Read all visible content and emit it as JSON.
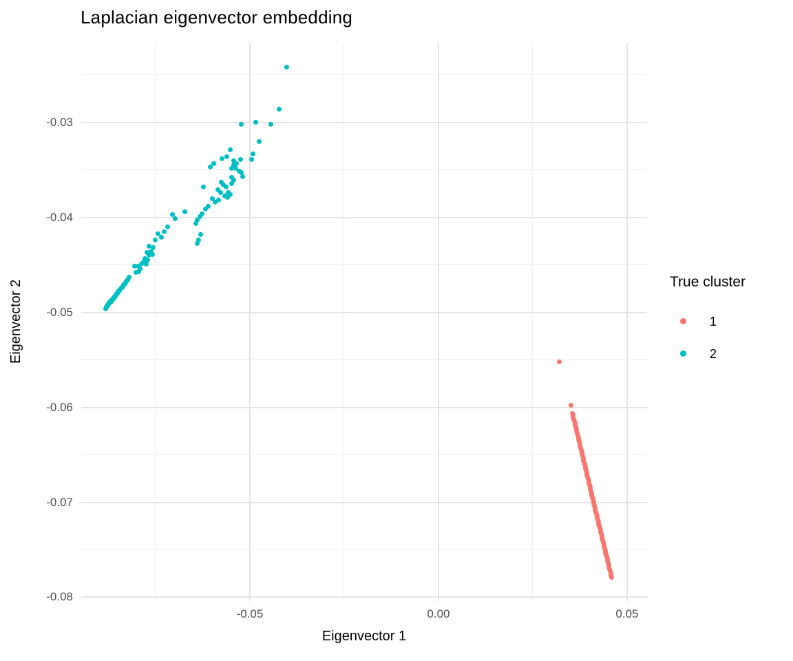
{
  "chart_data": {
    "type": "scatter",
    "title": "Laplacian eigenvector embedding",
    "xlabel": "Eigenvector 1",
    "ylabel": "Eigenvector 2",
    "xlim": [
      -0.0947,
      0.0553
    ],
    "ylim": [
      -0.0804,
      -0.0216
    ],
    "grid": true,
    "x_major_ticks": [
      -0.05,
      0.0,
      0.05
    ],
    "x_tick_labels": [
      "-0.05",
      "0.00",
      "0.05"
    ],
    "x_minor_ticks": [
      -0.075,
      -0.025,
      0.025
    ],
    "y_major_ticks": [
      -0.03,
      -0.04,
      -0.05,
      -0.06,
      -0.07,
      -0.08
    ],
    "y_tick_labels": [
      "-0.03",
      "-0.04",
      "-0.05",
      "-0.06",
      "-0.07",
      "-0.08"
    ],
    "y_minor_ticks": [
      -0.025,
      -0.035,
      -0.045,
      -0.055,
      -0.065,
      -0.075
    ],
    "legend": {
      "title": "True cluster",
      "position": "right",
      "entries": [
        {
          "label": "1",
          "color": "#F8766D"
        },
        {
          "label": "2",
          "color": "#00BFC4"
        }
      ]
    },
    "series": [
      {
        "name": "1",
        "color": "#F8766D",
        "points": [
          [
            0.0321,
            -0.0552
          ],
          [
            0.0351,
            -0.0598
          ],
          [
            0.0355,
            -0.06061
          ],
          [
            0.03563,
            -0.06082
          ],
          [
            0.03576,
            -0.06104
          ],
          [
            0.03589,
            -0.06126
          ],
          [
            0.03602,
            -0.06147
          ],
          [
            0.03615,
            -0.06169
          ],
          [
            0.03628,
            -0.0619
          ],
          [
            0.03641,
            -0.06212
          ],
          [
            0.03654,
            -0.06234
          ],
          [
            0.03667,
            -0.06255
          ],
          [
            0.0368,
            -0.06277
          ],
          [
            0.03693,
            -0.06298
          ],
          [
            0.03706,
            -0.0632
          ],
          [
            0.03719,
            -0.06342
          ],
          [
            0.03732,
            -0.06363
          ],
          [
            0.03745,
            -0.06385
          ],
          [
            0.03758,
            -0.06406
          ],
          [
            0.03771,
            -0.06428
          ],
          [
            0.03784,
            -0.0645
          ],
          [
            0.03797,
            -0.06471
          ],
          [
            0.0381,
            -0.06493
          ],
          [
            0.03823,
            -0.06515
          ],
          [
            0.03836,
            -0.06536
          ],
          [
            0.03849,
            -0.06558
          ],
          [
            0.03862,
            -0.06579
          ],
          [
            0.03875,
            -0.06601
          ],
          [
            0.03888,
            -0.06623
          ],
          [
            0.03901,
            -0.06644
          ],
          [
            0.03914,
            -0.06666
          ],
          [
            0.03927,
            -0.06687
          ],
          [
            0.0394,
            -0.06709
          ],
          [
            0.03953,
            -0.06731
          ],
          [
            0.03966,
            -0.06752
          ],
          [
            0.03979,
            -0.06774
          ],
          [
            0.03992,
            -0.06795
          ],
          [
            0.04005,
            -0.06817
          ],
          [
            0.04018,
            -0.06839
          ],
          [
            0.04031,
            -0.0686
          ],
          [
            0.04044,
            -0.06882
          ],
          [
            0.04057,
            -0.06904
          ],
          [
            0.0407,
            -0.06925
          ],
          [
            0.04083,
            -0.06947
          ],
          [
            0.04096,
            -0.06968
          ],
          [
            0.04109,
            -0.0699
          ],
          [
            0.04122,
            -0.07012
          ],
          [
            0.04135,
            -0.07033
          ],
          [
            0.04148,
            -0.07055
          ],
          [
            0.04161,
            -0.07076
          ],
          [
            0.04174,
            -0.07098
          ],
          [
            0.04187,
            -0.0712
          ],
          [
            0.042,
            -0.07141
          ],
          [
            0.04213,
            -0.07163
          ],
          [
            0.04226,
            -0.07184
          ],
          [
            0.04239,
            -0.07206
          ],
          [
            0.04252,
            -0.07228
          ],
          [
            0.04265,
            -0.07249
          ],
          [
            0.04278,
            -0.07271
          ],
          [
            0.04291,
            -0.07293
          ],
          [
            0.04304,
            -0.07314
          ],
          [
            0.04317,
            -0.07336
          ],
          [
            0.0433,
            -0.07357
          ],
          [
            0.04343,
            -0.07379
          ],
          [
            0.04356,
            -0.07401
          ],
          [
            0.04369,
            -0.07422
          ],
          [
            0.04382,
            -0.07444
          ],
          [
            0.04395,
            -0.07465
          ],
          [
            0.04408,
            -0.07487
          ],
          [
            0.04421,
            -0.07509
          ],
          [
            0.04434,
            -0.0753
          ],
          [
            0.04447,
            -0.07552
          ],
          [
            0.0446,
            -0.07573
          ],
          [
            0.04473,
            -0.07595
          ],
          [
            0.04486,
            -0.07617
          ],
          [
            0.04499,
            -0.07638
          ],
          [
            0.04512,
            -0.0766
          ],
          [
            0.04525,
            -0.07682
          ],
          [
            0.04538,
            -0.07703
          ],
          [
            0.04551,
            -0.07725
          ],
          [
            0.04564,
            -0.07746
          ],
          [
            0.04577,
            -0.07768
          ],
          [
            0.0459,
            -0.0779
          ]
        ]
      },
      {
        "name": "2",
        "color": "#00BFC4",
        "points": [
          [
            -0.0883,
            -0.0496
          ],
          [
            -0.0881,
            -0.0494
          ],
          [
            -0.0879,
            -0.0494
          ],
          [
            -0.0877,
            -0.0492
          ],
          [
            -0.0875,
            -0.0492
          ],
          [
            -0.0873,
            -0.049
          ],
          [
            -0.0871,
            -0.049
          ],
          [
            -0.0869,
            -0.0488
          ],
          [
            -0.0867,
            -0.0489
          ],
          [
            -0.0865,
            -0.0487
          ],
          [
            -0.0863,
            -0.0486
          ],
          [
            -0.0861,
            -0.0484
          ],
          [
            -0.0859,
            -0.0484
          ],
          [
            -0.0857,
            -0.0483
          ],
          [
            -0.0855,
            -0.0482
          ],
          [
            -0.0853,
            -0.048
          ],
          [
            -0.0851,
            -0.048
          ],
          [
            -0.0849,
            -0.0478
          ],
          [
            -0.0847,
            -0.0478
          ],
          [
            -0.0845,
            -0.0477
          ],
          [
            -0.0843,
            -0.0476
          ],
          [
            -0.0841,
            -0.0474
          ],
          [
            -0.0839,
            -0.0474
          ],
          [
            -0.0837,
            -0.0473
          ],
          [
            -0.0835,
            -0.0471
          ],
          [
            -0.0832,
            -0.047
          ],
          [
            -0.083,
            -0.0469
          ],
          [
            -0.0827,
            -0.0467
          ],
          [
            -0.0824,
            -0.0466
          ],
          [
            -0.082,
            -0.0463
          ],
          [
            -0.0794,
            -0.0457
          ],
          [
            -0.0806,
            -0.0451
          ],
          [
            -0.0802,
            -0.0458
          ],
          [
            -0.0797,
            -0.0451
          ],
          [
            -0.0791,
            -0.0454
          ],
          [
            -0.0787,
            -0.0449
          ],
          [
            -0.0782,
            -0.0447
          ],
          [
            -0.0779,
            -0.0443
          ],
          [
            -0.0774,
            -0.0449
          ],
          [
            -0.077,
            -0.0445
          ],
          [
            -0.0767,
            -0.044
          ],
          [
            -0.0767,
            -0.043
          ],
          [
            -0.0762,
            -0.0436
          ],
          [
            -0.0758,
            -0.0439
          ],
          [
            -0.0756,
            -0.0432
          ],
          [
            -0.0772,
            -0.0437
          ],
          [
            -0.075,
            -0.0424
          ],
          [
            -0.0743,
            -0.0417
          ],
          [
            -0.0735,
            -0.0421
          ],
          [
            -0.0727,
            -0.0415
          ],
          [
            -0.0718,
            -0.041
          ],
          [
            -0.0706,
            -0.0397
          ],
          [
            -0.0698,
            -0.0401
          ],
          [
            -0.0644,
            -0.0406
          ],
          [
            -0.0639,
            -0.0403
          ],
          [
            -0.0633,
            -0.0399
          ],
          [
            -0.063,
            -0.0418
          ],
          [
            -0.0635,
            -0.0424
          ],
          [
            -0.0639,
            -0.0427
          ],
          [
            -0.0626,
            -0.0396
          ],
          [
            -0.0617,
            -0.0391
          ],
          [
            -0.0611,
            -0.0388
          ],
          [
            -0.0673,
            -0.0394
          ],
          [
            -0.0623,
            -0.0368
          ],
          [
            -0.06,
            -0.038
          ],
          [
            -0.0592,
            -0.0384
          ],
          [
            -0.0583,
            -0.0382
          ],
          [
            -0.0584,
            -0.0371
          ],
          [
            -0.0578,
            -0.0374
          ],
          [
            -0.0566,
            -0.0377
          ],
          [
            -0.056,
            -0.0379
          ],
          [
            -0.0558,
            -0.0374
          ],
          [
            -0.0552,
            -0.0376
          ],
          [
            -0.0575,
            -0.0363
          ],
          [
            -0.057,
            -0.0366
          ],
          [
            -0.0562,
            -0.0368
          ],
          [
            -0.0548,
            -0.0358
          ],
          [
            -0.0542,
            -0.0361
          ],
          [
            -0.0549,
            -0.0364
          ],
          [
            -0.0595,
            -0.0343
          ],
          [
            -0.0605,
            -0.0347
          ],
          [
            -0.0549,
            -0.0348
          ],
          [
            -0.0542,
            -0.0345
          ],
          [
            -0.0537,
            -0.0348
          ],
          [
            -0.0529,
            -0.0351
          ],
          [
            -0.0522,
            -0.0353
          ],
          [
            -0.0519,
            -0.0357
          ],
          [
            -0.0542,
            -0.034
          ],
          [
            -0.0536,
            -0.0343
          ],
          [
            -0.0525,
            -0.0339
          ],
          [
            -0.0552,
            -0.0329
          ],
          [
            -0.0561,
            -0.0336
          ],
          [
            -0.0573,
            -0.0338
          ],
          [
            -0.0491,
            -0.0333
          ],
          [
            -0.0496,
            -0.0339
          ],
          [
            -0.0475,
            -0.032
          ],
          [
            -0.0522,
            -0.0302
          ],
          [
            -0.0484,
            -0.03
          ],
          [
            -0.0445,
            -0.0302
          ],
          [
            -0.0422,
            -0.0286
          ],
          [
            -0.0403,
            -0.0242
          ]
        ]
      }
    ]
  },
  "colors": {
    "background": "#FFFFFF",
    "grid_major": "#E4E4E4",
    "grid_minor": "#F0F0F0",
    "tick_text": "#4D4D4D",
    "title_text": "#000000",
    "cluster_1": "#F8766D",
    "cluster_2": "#00BFC4"
  }
}
